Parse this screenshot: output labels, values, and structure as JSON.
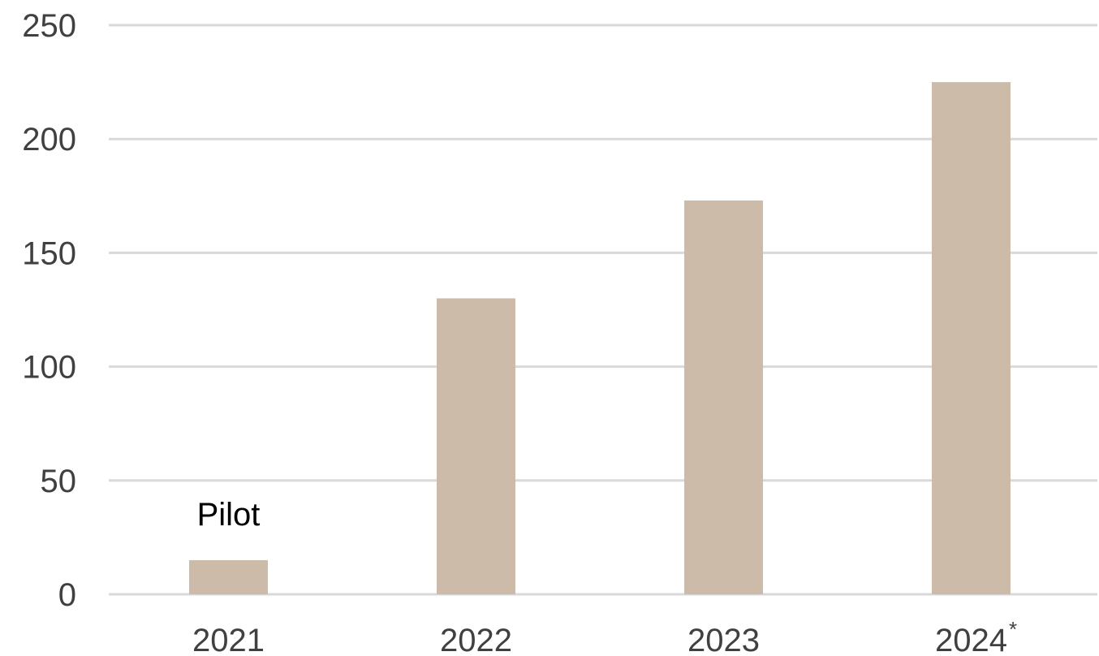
{
  "chart_data": {
    "type": "bar",
    "categories": [
      "2021",
      "2022",
      "2023",
      "2024"
    ],
    "category_footnotes": [
      "",
      "",
      "",
      "*"
    ],
    "values": [
      15,
      130,
      173,
      225
    ],
    "ylim": [
      0,
      250
    ],
    "yticks": [
      0,
      50,
      100,
      150,
      200,
      250
    ],
    "grid": true,
    "title": "",
    "xlabel": "",
    "ylabel": "",
    "annotations": [
      {
        "category": "2021",
        "text": "Pilot"
      }
    ],
    "colors": {
      "bar": "#cdbbaa",
      "grid": "#d9d9d9",
      "tick_text": "#404040",
      "annotation_text": "#000000"
    }
  }
}
